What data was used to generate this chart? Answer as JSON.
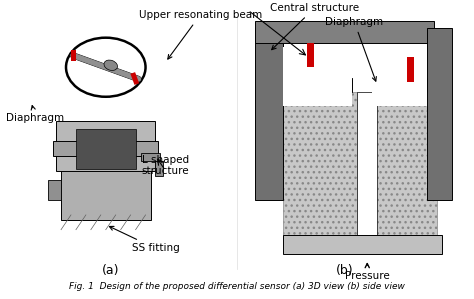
{
  "title": "",
  "caption": "Fig. 1  Design of the proposed differential sensor (a) 3D view (b) side view",
  "label_a": "(a)",
  "label_b": "(b)",
  "bg_color": "#ffffff",
  "fig_width": 4.74,
  "fig_height": 2.99,
  "dpi": 100,
  "annotations": {
    "upper_resonating_beam": "Upper resonating beam",
    "central_structure": "Central structure",
    "diaphragm_left": "Diaphragm",
    "diaphragm_right": "Diaphragm",
    "l_shaped": "L shaped\nstructure",
    "ss_fitting": "SS fitting",
    "pressure": "Pressure"
  },
  "gray_dark": "#808080",
  "gray_mid": "#a0a0a0",
  "gray_light": "#c8c8c8",
  "gray_lighter": "#d8d8d8",
  "gray_hatched": "#c0c0c0",
  "red_color": "#cc0000",
  "black": "#000000"
}
